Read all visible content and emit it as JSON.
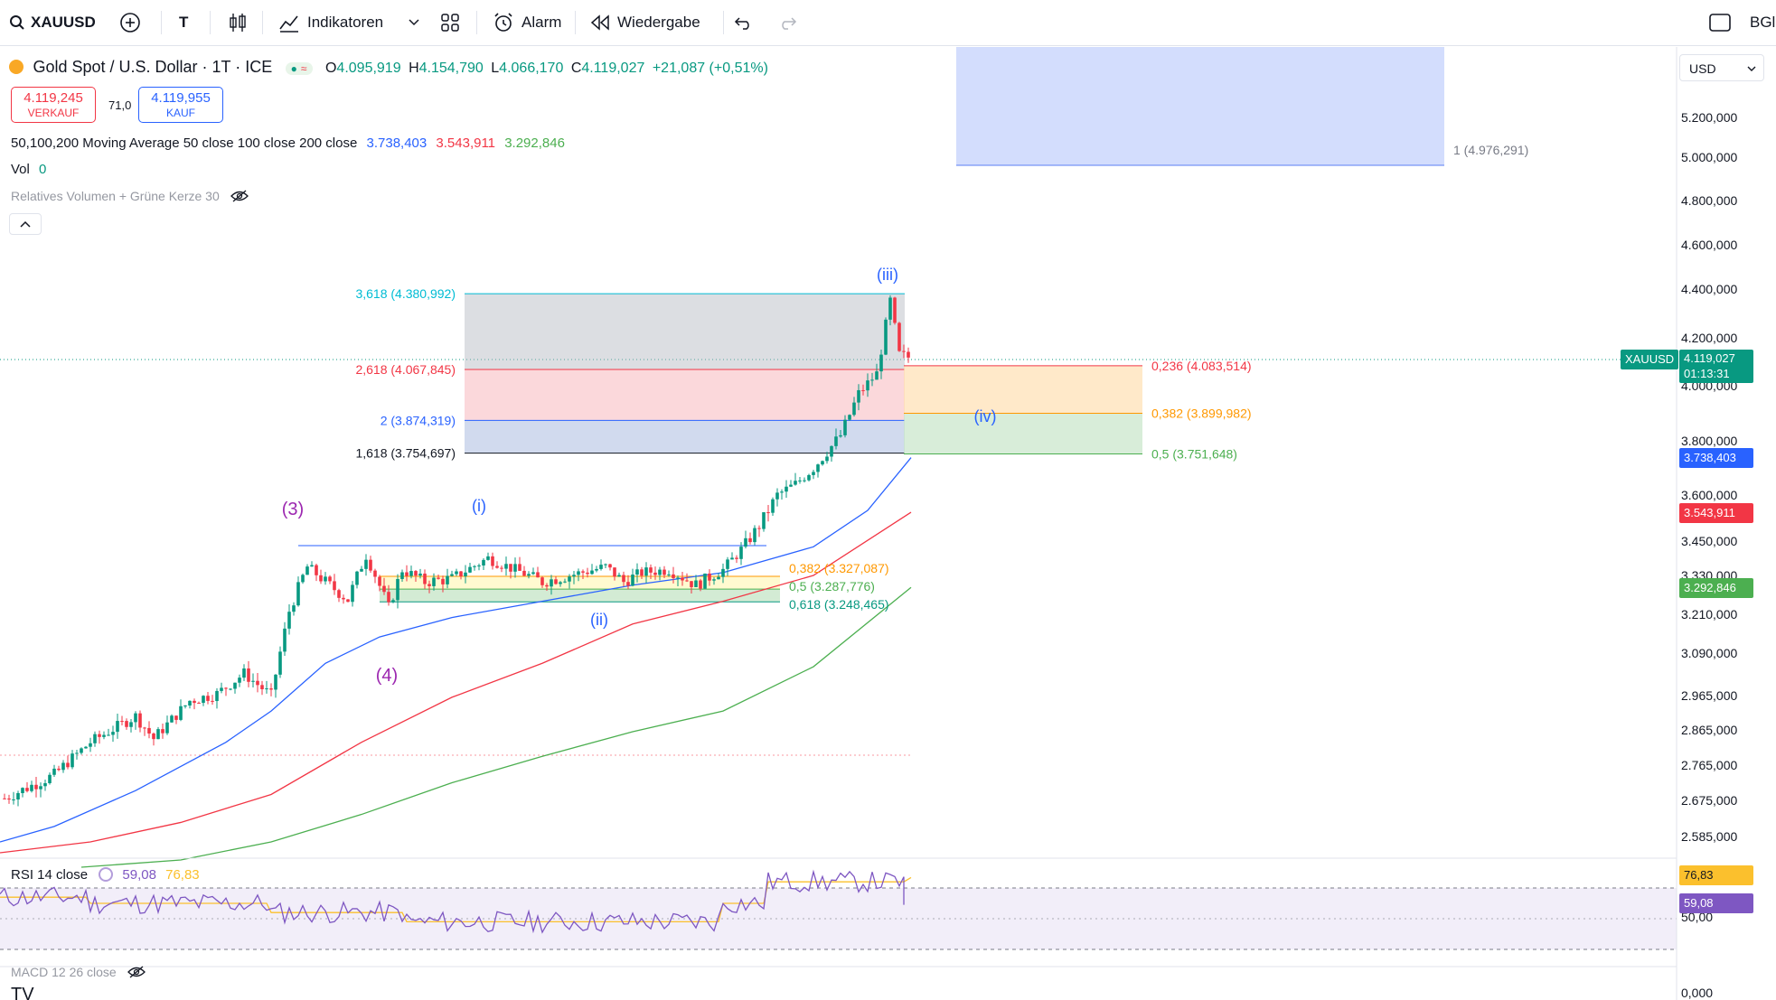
{
  "toolbar": {
    "symbol": "XAUUSD",
    "text_tool": "T",
    "indicators_label": "Indikatoren",
    "alert_label": "Alarm",
    "replay_label": "Wiedergabe",
    "right_label": "BGln"
  },
  "legend": {
    "title": "Gold Spot / U.S. Dollar · 1T · ICE",
    "o_label": "O",
    "o": "4.095,919",
    "h_label": "H",
    "h": "4.154,790",
    "l_label": "L",
    "l": "4.066,170",
    "c_label": "C",
    "c": "4.119,027",
    "change": "+21,087 (+0,51%)",
    "sell_price": "4.119,245",
    "sell_label": "VERKAUF",
    "spread": "71,0",
    "buy_price": "4.119,955",
    "buy_label": "KAUF",
    "ma_label": "50,100,200 Moving Average 50 close 100 close 200 close",
    "ma_values": [
      "3.738,403",
      "3.543,911",
      "3.292,846"
    ],
    "vol_label": "Vol",
    "vol_value": "0",
    "rel_vol_label": "Relatives Volumen + Grüne Kerze 30",
    "rsi_label": "RSI 14 close",
    "rsi_values": [
      "59,08",
      "76,83"
    ],
    "macd_label": "MACD 12 26 close",
    "currency": "USD"
  },
  "colors": {
    "up": "#089981",
    "down": "#f23645",
    "ma50": "#2962ff",
    "ma100": "#f23645",
    "ma200": "#4caf50",
    "rsi": "#7e57c2",
    "rsi_ma": "#fbc02d"
  },
  "chart_data": {
    "type": "candlestick",
    "symbol": "XAUUSD",
    "y_axis_ticks": [
      "5.200,000",
      "5.000,000",
      "4.800,000",
      "4.600,000",
      "4.400,000",
      "4.200,000",
      "4.000,000",
      "3.800,000",
      "3.600,000",
      "3.450,000",
      "3.330,000",
      "3.210,000",
      "3.090,000",
      "2.965,000",
      "2.865,000",
      "2.765,000",
      "2.675,000",
      "2.585,000"
    ],
    "price_labels": {
      "last": {
        "text": "XAUUSD",
        "value": "4.119,027",
        "countdown": "01:13:31"
      },
      "ma50": "3.738,403",
      "ma100": "3.543,911",
      "ma200": "3.292,846"
    },
    "fib_extension": [
      {
        "label": "3,618 (4.380,992)",
        "value": 4380.992
      },
      {
        "label": "2,618 (4.067,845)",
        "value": 4067.845
      },
      {
        "label": "2 (3.874,319)",
        "value": 3874.319
      },
      {
        "label": "1,618 (3.754,697)",
        "value": 3754.697
      }
    ],
    "fib_retracement_upper": [
      {
        "label": "0,236 (4.083,514)",
        "value": 4083.514
      },
      {
        "label": "0,382 (3.899,982)",
        "value": 3899.982
      },
      {
        "label": "0,5 (3.751,648)",
        "value": 3751.648
      }
    ],
    "fib_retracement_lower": [
      {
        "label": "0,382 (3.327,087)",
        "value": 3327.087
      },
      {
        "label": "0,5 (3.287,776)",
        "value": 3287.776
      },
      {
        "label": "0,618 (3.248,465)",
        "value": 3248.465
      }
    ],
    "target_label": "1 (4.976,291)",
    "wave_labels": [
      {
        "text": "(3)",
        "color": "#9c27b0"
      },
      {
        "text": "(4)",
        "color": "#9c27b0"
      },
      {
        "text": "(i)",
        "color": "#2962ff"
      },
      {
        "text": "(ii)",
        "color": "#2962ff"
      },
      {
        "text": "(iii)",
        "color": "#2962ff"
      },
      {
        "text": "(iv)",
        "color": "#2962ff"
      }
    ],
    "rsi": {
      "value": 59.08,
      "ma": 76.83,
      "axis_label": "50,00",
      "overbought": 70,
      "oversold": 30
    },
    "macd_axis_label": "0,000"
  }
}
